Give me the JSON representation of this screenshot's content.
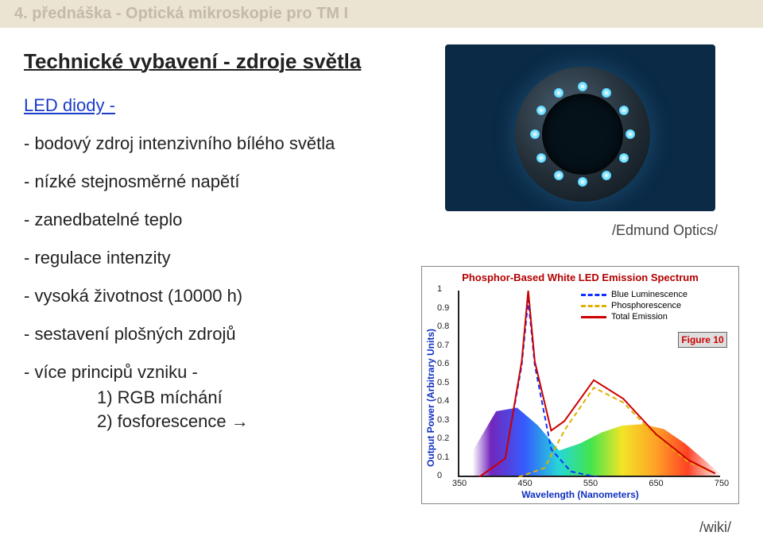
{
  "header": {
    "text": "4. přednáška - Optická mikroskopie pro TM I"
  },
  "section_title": "Technické vybavení - zdroje světla",
  "link_line": "LED diody -",
  "bullets": [
    "- bodový zdroj intenzivního bílého světla",
    "- nízké stejnosměrné napětí",
    "- zanedbatelné teplo",
    "- regulace intenzity",
    "- vysoká životnost (10000 h)",
    "- sestavení plošných zdrojů",
    "- více principů vzniku -"
  ],
  "sub_bullets": [
    "1) RGB míchání",
    "2) fosforescence →"
  ],
  "credit_edmund": "/Edmund Optics/",
  "credit_wiki": "/wiki/",
  "ring_light": {
    "n_leds": 12,
    "bg": "#0a2a46"
  },
  "spectrum": {
    "title": "Phosphor-Based White LED Emission Spectrum",
    "legend": [
      {
        "label": "Blue Luminescence",
        "color": "#1030ff",
        "dash": true
      },
      {
        "label": "Phosphorescence",
        "color": "#e0b000",
        "dash": true
      },
      {
        "label": "Total Emission",
        "color": "#cc0000",
        "dash": false
      }
    ],
    "figure_label": "Figure 10",
    "xlabel": "Wavelength (Nanometers)",
    "ylabel": "Output Power (Arbitrary Units)",
    "x_ticks": [
      350,
      450,
      550,
      650,
      750
    ],
    "y_ticks": [
      0,
      0.1,
      0.2,
      0.3,
      0.4,
      0.5,
      0.6,
      0.7,
      0.8,
      0.9,
      1.0
    ],
    "xlim": [
      350,
      750
    ],
    "ylim": [
      0,
      1.0
    ],
    "series": {
      "blue": [
        [
          380,
          0.0
        ],
        [
          420,
          0.1
        ],
        [
          445,
          0.6
        ],
        [
          455,
          0.95
        ],
        [
          465,
          0.6
        ],
        [
          490,
          0.15
        ],
        [
          520,
          0.03
        ],
        [
          560,
          0.0
        ]
      ],
      "yellow": [
        [
          440,
          0.0
        ],
        [
          480,
          0.05
        ],
        [
          510,
          0.25
        ],
        [
          555,
          0.48
        ],
        [
          600,
          0.4
        ],
        [
          650,
          0.22
        ],
        [
          700,
          0.08
        ],
        [
          740,
          0.02
        ]
      ],
      "total": [
        [
          380,
          0.0
        ],
        [
          420,
          0.1
        ],
        [
          445,
          0.62
        ],
        [
          455,
          1.0
        ],
        [
          465,
          0.62
        ],
        [
          490,
          0.25
        ],
        [
          510,
          0.3
        ],
        [
          555,
          0.52
        ],
        [
          600,
          0.42
        ],
        [
          650,
          0.23
        ],
        [
          700,
          0.09
        ],
        [
          740,
          0.02
        ]
      ]
    },
    "colors": {
      "blue": "#1030ff",
      "yellow": "#e0b000",
      "total": "#cc0000"
    },
    "line_width": 2
  }
}
